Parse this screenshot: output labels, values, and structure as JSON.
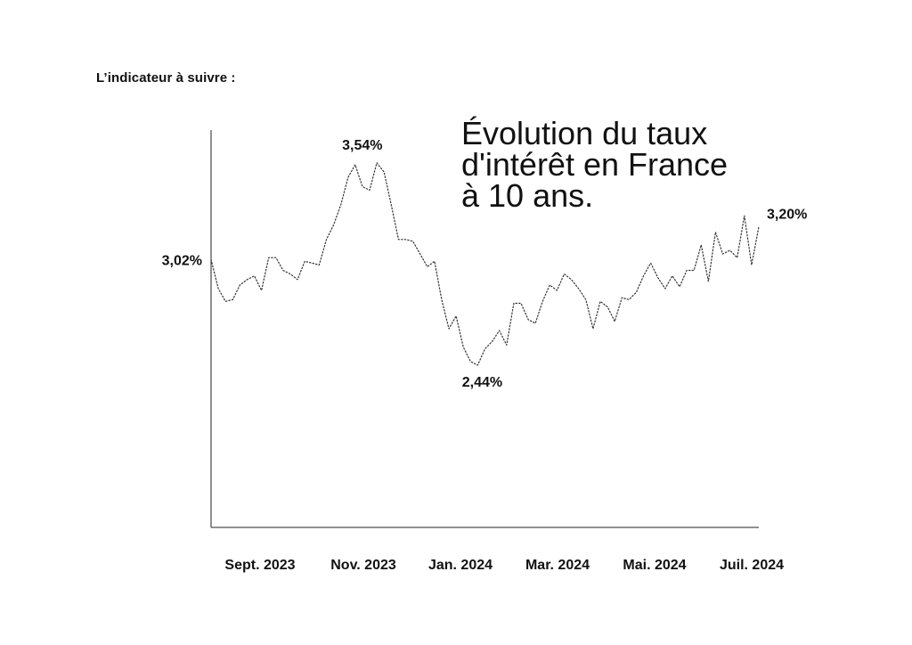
{
  "header": {
    "eyebrow": "L’indicateur à suivre :"
  },
  "title_lines": [
    "Évolution du taux",
    "d'intérêt en France",
    "à 10 ans."
  ],
  "chart_data": {
    "type": "line",
    "title": "Évolution du taux d'intérêt en France à 10 ans.",
    "xlabel": "",
    "ylabel": "",
    "x_tick_labels": [
      "Sept. 2023",
      "Nov. 2023",
      "Jan. 2024",
      "Mar. 2024",
      "Mai. 2024",
      "Juil. 2024"
    ],
    "ylim": [
      1.55,
      3.73
    ],
    "grid": false,
    "line_style": "dotted",
    "colors": {
      "line": "#333333",
      "axis": "#222222",
      "text": "#111111"
    },
    "series": [
      {
        "values": [
          3.02,
          2.86,
          2.79,
          2.8,
          2.88,
          2.91,
          2.93,
          2.85,
          3.03,
          3.03,
          2.96,
          2.94,
          2.91,
          3.01,
          3.0,
          2.99,
          3.13,
          3.21,
          3.32,
          3.47,
          3.54,
          3.42,
          3.4,
          3.55,
          3.5,
          3.32,
          3.13,
          3.13,
          3.12,
          3.05,
          2.98,
          3.01,
          2.8,
          2.64,
          2.71,
          2.54,
          2.46,
          2.44,
          2.53,
          2.57,
          2.63,
          2.55,
          2.78,
          2.78,
          2.69,
          2.67,
          2.79,
          2.88,
          2.85,
          2.94,
          2.91,
          2.86,
          2.8,
          2.64,
          2.79,
          2.76,
          2.68,
          2.81,
          2.8,
          2.84,
          2.93,
          3.0,
          2.92,
          2.86,
          2.93,
          2.87,
          2.96,
          2.96,
          3.1,
          2.9,
          3.17,
          3.05,
          3.07,
          3.03,
          3.26,
          2.99,
          3.2
        ]
      }
    ],
    "annotations": [
      {
        "label": "3,02%",
        "x_index": 0,
        "value": 3.02
      },
      {
        "label": "3,54%",
        "x_index": 20,
        "value": 3.54
      },
      {
        "label": "2,44%",
        "x_index": 37,
        "value": 2.44
      },
      {
        "label": "3,20%",
        "x_index": 76,
        "value": 3.2
      }
    ]
  }
}
